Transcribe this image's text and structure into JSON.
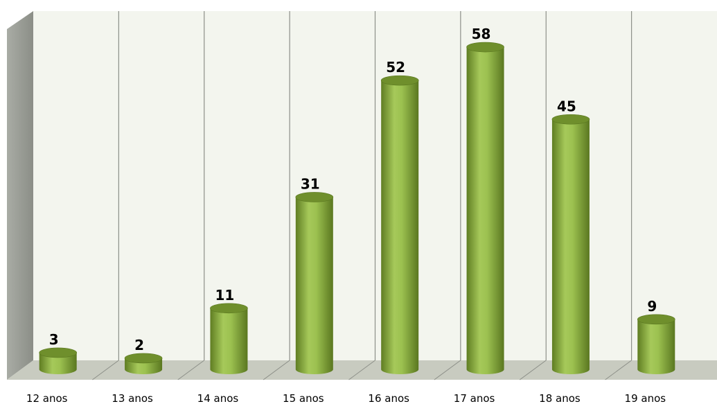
{
  "chart_data": {
    "type": "bar",
    "categories": [
      "12 anos",
      "13 anos",
      "14 anos",
      "15 anos",
      "16 anos",
      "17 anos",
      "18 anos",
      "19 anos"
    ],
    "values": [
      3,
      2,
      11,
      31,
      52,
      58,
      45,
      9
    ],
    "title": "",
    "xlabel": "",
    "ylabel": "",
    "ylim": [
      0,
      60
    ],
    "grid": true,
    "legend": "none",
    "style": "3d-cylinder"
  },
  "colors": {
    "bar": "#8db240",
    "bar_dark": "#6f8f2c",
    "bar_light": "#b9d67a",
    "wall": "#f3f5ee",
    "floor": "#c8cbc0",
    "side_wall": "#9ea19a",
    "gridline": "#8c8f88"
  }
}
